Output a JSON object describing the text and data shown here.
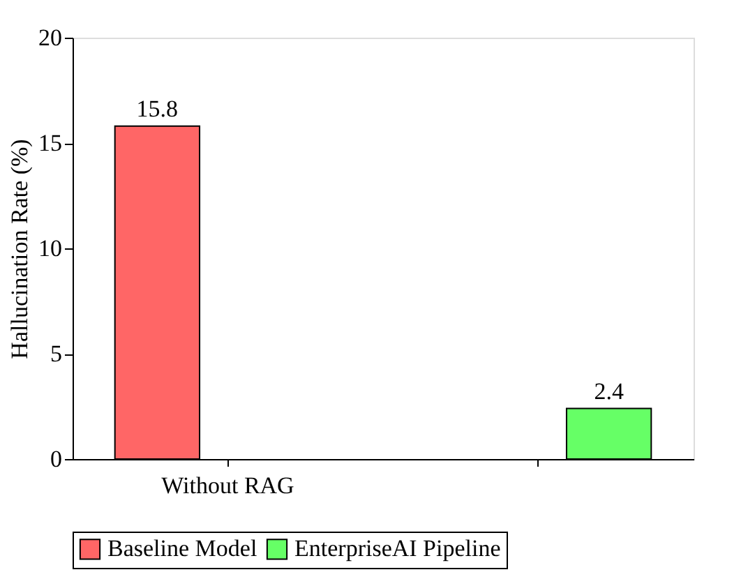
{
  "chart_data": {
    "type": "bar",
    "ylabel": "Hallucination Rate (%)",
    "categories": [
      "Without RAG",
      null
    ],
    "series": [
      {
        "name": "Baseline Model",
        "color": "#ff6666",
        "values": [
          15.8,
          null
        ]
      },
      {
        "name": "EnterpriseAI Pipeline",
        "color": "#66ff66",
        "values": [
          null,
          2.4
        ]
      }
    ],
    "ylim": [
      0,
      20
    ],
    "yticks": [
      0,
      5,
      10,
      15,
      20
    ],
    "data_labels": true,
    "grid": false,
    "legend": "bottom"
  }
}
